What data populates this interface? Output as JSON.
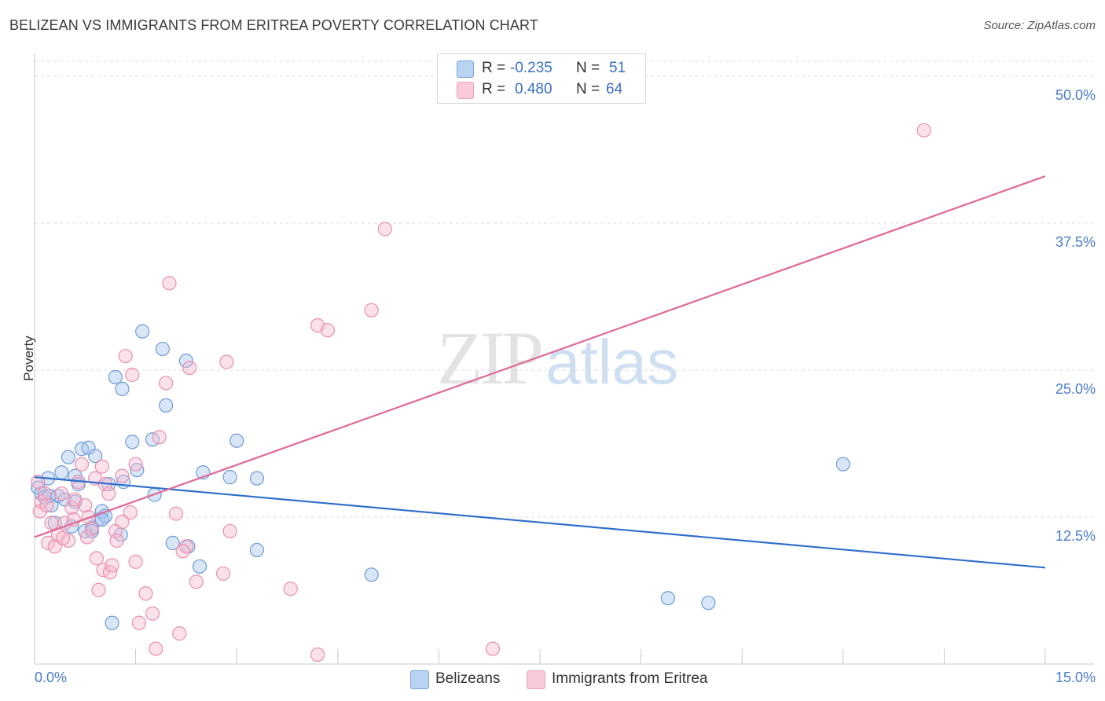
{
  "title": "BELIZEAN VS IMMIGRANTS FROM ERITREA POVERTY CORRELATION CHART",
  "source": "Source: ZipAtlas.com",
  "watermark": {
    "zip": "ZIP",
    "atlas": "atlas"
  },
  "colors": {
    "blue_fill": "#a9c7ef",
    "blue_stroke": "#6f9bd6",
    "blue_line": "#2f6fcb",
    "pink_fill": "#f7bdd0",
    "pink_stroke": "#e98fb0",
    "pink_line": "#e06898",
    "grid": "#dedede",
    "tick_text": "#4a7cc9"
  },
  "legend": {
    "rows": [
      {
        "r_label": "R =",
        "r_value": "-0.235",
        "n_label": "N =",
        "n_value": "51",
        "swatch": "blue"
      },
      {
        "r_label": "R =",
        "r_value": "0.480",
        "n_label": "N =",
        "n_value": "64",
        "swatch": "pink"
      }
    ]
  },
  "bottom_legend": [
    {
      "label": "Belizeans",
      "swatch": "blue"
    },
    {
      "label": "Immigrants from Eritrea",
      "swatch": "pink"
    }
  ],
  "chart_data": {
    "type": "scatter",
    "ylabel": "Poverty",
    "xlim": [
      0,
      15
    ],
    "ylim": [
      0,
      50
    ],
    "x_tick_labels": [
      "0.0%",
      "15.0%"
    ],
    "y_ticks": [
      12.5,
      25.0,
      37.5,
      50.0
    ],
    "y_tick_labels": [
      "12.5%",
      "25.0%",
      "37.5%",
      "50.0%"
    ],
    "grid": "horizontal dashed",
    "legend_placement": "top-center",
    "series": [
      {
        "name": "Belizeans",
        "color": "blue",
        "trend": {
          "x": [
            0,
            15
          ],
          "y": [
            15.9,
            8.2
          ]
        },
        "points": [
          [
            0.05,
            15.0
          ],
          [
            0.1,
            14.5
          ],
          [
            0.15,
            14.2
          ],
          [
            0.2,
            15.8
          ],
          [
            0.25,
            13.5
          ],
          [
            0.3,
            12.0
          ],
          [
            0.35,
            14.3
          ],
          [
            0.4,
            16.3
          ],
          [
            0.45,
            14.0
          ],
          [
            0.5,
            17.6
          ],
          [
            0.55,
            11.7
          ],
          [
            0.6,
            16.0
          ],
          [
            0.65,
            15.3
          ],
          [
            0.7,
            18.3
          ],
          [
            0.75,
            11.3
          ],
          [
            0.8,
            18.4
          ],
          [
            0.85,
            11.6
          ],
          [
            0.9,
            17.7
          ],
          [
            0.95,
            12.3
          ],
          [
            1.0,
            13.0
          ],
          [
            1.05,
            12.6
          ],
          [
            1.1,
            15.3
          ],
          [
            1.15,
            3.5
          ],
          [
            1.2,
            24.4
          ],
          [
            1.28,
            11.0
          ],
          [
            1.3,
            23.4
          ],
          [
            1.32,
            15.5
          ],
          [
            1.45,
            18.9
          ],
          [
            1.52,
            16.5
          ],
          [
            1.6,
            28.3
          ],
          [
            1.75,
            19.1
          ],
          [
            1.78,
            14.4
          ],
          [
            1.9,
            26.8
          ],
          [
            1.95,
            22.0
          ],
          [
            2.05,
            10.3
          ],
          [
            2.25,
            25.8
          ],
          [
            2.28,
            10.0
          ],
          [
            2.45,
            8.3
          ],
          [
            2.5,
            16.3
          ],
          [
            2.9,
            15.9
          ],
          [
            3.0,
            19.0
          ],
          [
            3.3,
            9.7
          ],
          [
            3.3,
            15.8
          ],
          [
            5.0,
            7.6
          ],
          [
            9.4,
            5.6
          ],
          [
            10.0,
            5.2
          ],
          [
            12.0,
            17.0
          ],
          [
            1.0,
            12.3
          ],
          [
            0.85,
            11.3
          ],
          [
            0.22,
            14.3
          ],
          [
            0.6,
            13.8
          ]
        ]
      },
      {
        "name": "Immigrants from Eritrea",
        "color": "pink",
        "trend": {
          "x": [
            0,
            15
          ],
          "y": [
            10.8,
            41.5
          ]
        },
        "points": [
          [
            0.05,
            15.5
          ],
          [
            0.08,
            13.0
          ],
          [
            0.1,
            13.8
          ],
          [
            0.15,
            14.5
          ],
          [
            0.2,
            10.3
          ],
          [
            0.25,
            12.0
          ],
          [
            0.3,
            10.0
          ],
          [
            0.35,
            11.0
          ],
          [
            0.4,
            14.5
          ],
          [
            0.45,
            12.0
          ],
          [
            0.5,
            10.5
          ],
          [
            0.55,
            13.3
          ],
          [
            0.6,
            14.0
          ],
          [
            0.65,
            15.5
          ],
          [
            0.7,
            17.0
          ],
          [
            0.75,
            13.5
          ],
          [
            0.8,
            12.5
          ],
          [
            0.85,
            11.5
          ],
          [
            0.9,
            15.8
          ],
          [
            0.92,
            9.0
          ],
          [
            0.95,
            6.3
          ],
          [
            1.0,
            16.8
          ],
          [
            1.02,
            8.0
          ],
          [
            1.05,
            15.3
          ],
          [
            1.1,
            14.5
          ],
          [
            1.12,
            7.8
          ],
          [
            1.15,
            8.4
          ],
          [
            1.2,
            11.3
          ],
          [
            1.22,
            10.5
          ],
          [
            1.3,
            12.1
          ],
          [
            1.3,
            16.0
          ],
          [
            1.35,
            26.2
          ],
          [
            1.45,
            24.6
          ],
          [
            1.5,
            17.0
          ],
          [
            1.5,
            8.7
          ],
          [
            1.55,
            3.5
          ],
          [
            1.65,
            6.0
          ],
          [
            1.75,
            4.3
          ],
          [
            1.8,
            1.3
          ],
          [
            1.85,
            19.3
          ],
          [
            1.95,
            23.9
          ],
          [
            2.0,
            32.4
          ],
          [
            2.1,
            12.8
          ],
          [
            2.15,
            2.6
          ],
          [
            2.25,
            10.0
          ],
          [
            2.3,
            25.2
          ],
          [
            2.4,
            7.0
          ],
          [
            2.8,
            7.7
          ],
          [
            2.85,
            25.7
          ],
          [
            2.9,
            11.3
          ],
          [
            3.8,
            6.4
          ],
          [
            4.2,
            0.8
          ],
          [
            4.2,
            28.8
          ],
          [
            4.35,
            28.4
          ],
          [
            5.0,
            30.1
          ],
          [
            5.2,
            37.0
          ],
          [
            6.8,
            1.3
          ],
          [
            13.2,
            45.4
          ],
          [
            0.18,
            13.5
          ],
          [
            0.42,
            10.7
          ],
          [
            0.58,
            12.3
          ],
          [
            0.78,
            10.8
          ],
          [
            1.42,
            12.9
          ],
          [
            2.2,
            9.6
          ]
        ]
      }
    ]
  }
}
